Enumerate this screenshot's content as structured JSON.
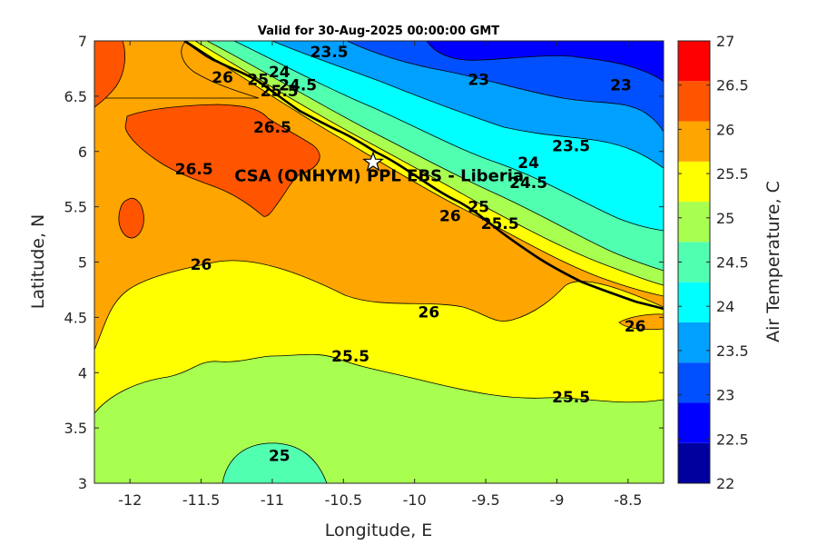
{
  "chart_data": {
    "type": "heatmap",
    "title": "Valid for 30-Aug-2025 00:00:00 GMT",
    "xlabel": "Longitude, E",
    "ylabel": "Latitude, N",
    "xlim": [
      -12.25,
      -8.25
    ],
    "ylim": [
      3,
      7
    ],
    "xticks": [
      -12,
      -11.5,
      -11,
      -10.5,
      -10,
      -9.5,
      -9,
      -8.5
    ],
    "xtick_labels": [
      "-12",
      "-11.5",
      "-11",
      "-10.5",
      "-10",
      "-9.5",
      "-9",
      "-8.5"
    ],
    "yticks": [
      3,
      3.5,
      4,
      4.5,
      5,
      5.5,
      6,
      6.5,
      7
    ],
    "ytick_labels": [
      "3",
      "3.5",
      "4",
      "4.5",
      "5",
      "5.5",
      "6",
      "6.5",
      "7"
    ],
    "colorbar": {
      "label": "Air Temperature, C",
      "ticks": [
        22,
        22.5,
        23,
        23.5,
        24,
        24.5,
        25,
        25.5,
        26,
        26.5,
        27
      ],
      "tick_labels": [
        "22",
        "22.5",
        "23",
        "23.5",
        "24",
        "24.5",
        "25",
        "25.5",
        "26",
        "26.5",
        "27"
      ],
      "colors": [
        "#00009f",
        "#0000ff",
        "#0050ff",
        "#00a0ff",
        "#00ffff",
        "#50ffb0",
        "#a8ff50",
        "#ffff00",
        "#ffa500",
        "#ff5500",
        "#ff0000"
      ]
    },
    "contour_labels": [
      {
        "text": "23.5",
        "lon": -10.6,
        "lat": 6.9
      },
      {
        "text": "23",
        "lon": -9.55,
        "lat": 6.65
      },
      {
        "text": "23",
        "lon": -8.55,
        "lat": 6.6
      },
      {
        "text": "24",
        "lon": -10.95,
        "lat": 6.72
      },
      {
        "text": "24.5",
        "lon": -10.82,
        "lat": 6.6
      },
      {
        "text": "25",
        "lon": -11.1,
        "lat": 6.65
      },
      {
        "text": "25.5",
        "lon": -10.95,
        "lat": 6.55
      },
      {
        "text": "26",
        "lon": -11.35,
        "lat": 6.67
      },
      {
        "text": "26.5",
        "lon": -11.0,
        "lat": 6.22
      },
      {
        "text": "26.5",
        "lon": -11.55,
        "lat": 5.84
      },
      {
        "text": "23.5",
        "lon": -8.9,
        "lat": 6.05
      },
      {
        "text": "24",
        "lon": -9.2,
        "lat": 5.9
      },
      {
        "text": "24.5",
        "lon": -9.2,
        "lat": 5.72
      },
      {
        "text": "25",
        "lon": -9.55,
        "lat": 5.5
      },
      {
        "text": "25.5",
        "lon": -9.4,
        "lat": 5.35
      },
      {
        "text": "26",
        "lon": -9.75,
        "lat": 5.42
      },
      {
        "text": "26",
        "lon": -11.5,
        "lat": 4.98
      },
      {
        "text": "26",
        "lon": -9.9,
        "lat": 4.55
      },
      {
        "text": "26",
        "lon": -8.45,
        "lat": 4.42
      },
      {
        "text": "25.5",
        "lon": -10.45,
        "lat": 4.15
      },
      {
        "text": "25.5",
        "lon": -8.9,
        "lat": 3.78
      },
      {
        "text": "25",
        "lon": -10.95,
        "lat": 3.25
      }
    ],
    "station": {
      "name": "CSA (ONHYM) PPL EBS  - Liberia",
      "lon": -10.3,
      "lat": 5.92
    }
  }
}
